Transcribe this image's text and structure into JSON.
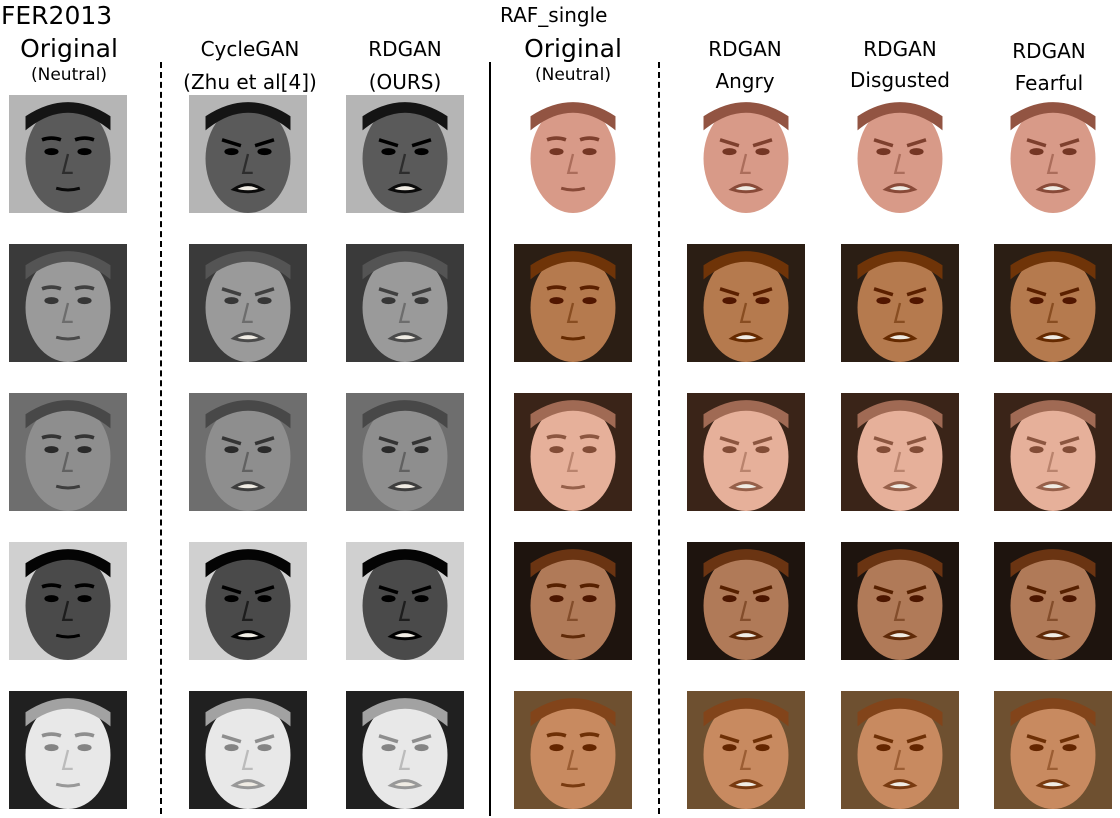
{
  "groups": {
    "fer": "FER2013",
    "raf": "RAF_single"
  },
  "columns": [
    {
      "title": "Original",
      "subtitle": "(Neutral)"
    },
    {
      "title": "CycleGAN",
      "subtitle": "(Zhu et al[4])"
    },
    {
      "title": "RDGAN",
      "subtitle": "(OURS)"
    },
    {
      "title": "Original",
      "subtitle": "(Neutral)"
    },
    {
      "title": "RDGAN",
      "subtitle": "Angry"
    },
    {
      "title": "RDGAN",
      "subtitle": "Disgusted"
    },
    {
      "title": "RDGAN",
      "subtitle": "Fearful"
    }
  ],
  "rows": 5,
  "tones": {
    "gray": [
      "#5a5a5a",
      "#9a9a9a",
      "#8e8e8e",
      "#4a4a4a",
      "#e8e8e8"
    ],
    "color": [
      "#d89a88",
      "#b57a4e",
      "#e6b09a",
      "#b07a58",
      "#c88a60"
    ],
    "background_gray": [
      "#b5b5b5",
      "#3a3a3a",
      "#6e6e6e",
      "#d0d0d0",
      "#202020"
    ],
    "background_color": [
      "#ffffff",
      "#2b1e14",
      "#3a2418",
      "#1e140e",
      "#6e5030"
    ]
  }
}
